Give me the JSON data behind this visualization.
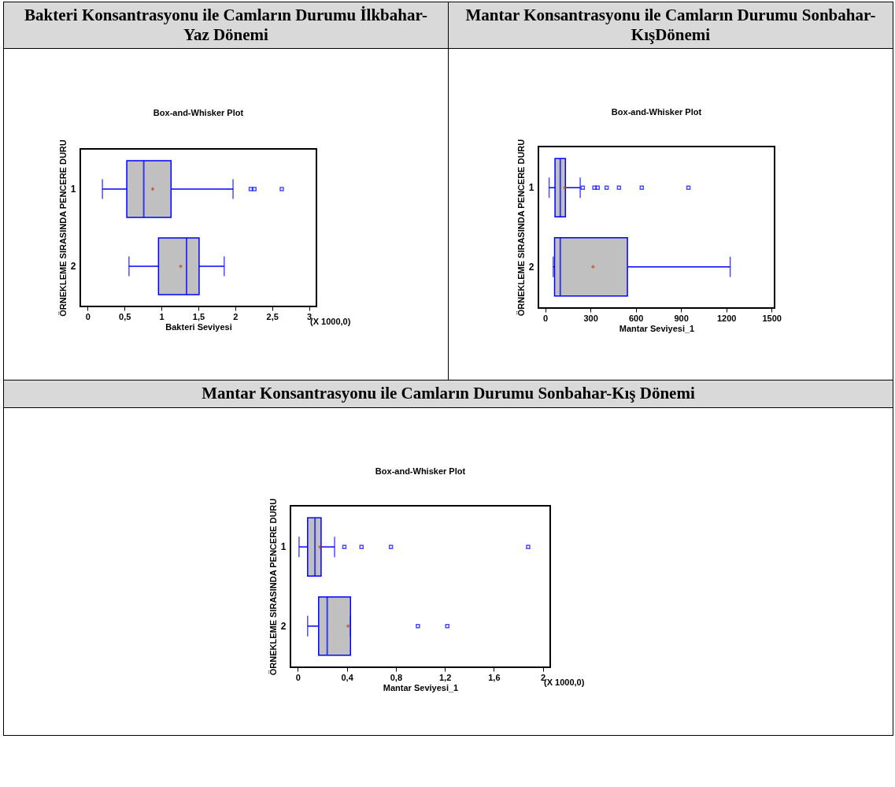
{
  "chart_data": [
    {
      "type": "box",
      "title": "Bakteri Konsantrasyonu ile Camların Durumu İlkbahar-Yaz Dönemi",
      "subtitle": "Box-and-Whisker Plot",
      "xlabel": "Bakteri Seviyesi",
      "ylabel": "ÖRNEKLEME SIRASINDA PENCERE DURU",
      "orientation": "horizontal",
      "categories": [
        "1",
        "2"
      ],
      "boxes": [
        {
          "low": 0.2,
          "q1": 0.53,
          "median": 0.76,
          "q3": 1.13,
          "high": 1.97,
          "mean": 0.88,
          "outliers": [
            2.21,
            2.26,
            2.63
          ]
        },
        {
          "low": 0.56,
          "q1": 0.96,
          "median": 1.34,
          "q3": 1.51,
          "high": 1.85,
          "mean": 1.26
        }
      ],
      "xlim": [
        -0.1,
        3.1
      ],
      "xticks": [
        0,
        {
          "value": 0.5,
          "label": "0,5"
        },
        1,
        {
          "value": 1.5,
          "label": "1,5"
        },
        2,
        {
          "value": 2.5,
          "label": "2,5"
        },
        3
      ],
      "annotations": [
        "(X 1000,0)"
      ]
    },
    {
      "type": "box",
      "title": "Mantar Konsantrasyonu ile Camların Durumu Sonbahar-KışDönemi",
      "subtitle": "Box-and-Whisker Plot",
      "xlabel": "Mantar Seviyesi_1",
      "ylabel": "ÖRNEKLEME SIRASINDA PENCERE DURU",
      "orientation": "horizontal",
      "categories": [
        "1",
        "2"
      ],
      "boxes": [
        {
          "low": 26,
          "q1": 65,
          "median": 100,
          "q3": 134,
          "high": 232,
          "mean": 130,
          "outliers": [
            249,
            326,
            348,
            407,
            489,
            640,
            949
          ]
        },
        {
          "low": 53,
          "q1": 62,
          "median": 100,
          "q3": 545,
          "high": 1226,
          "mean": 317
        }
      ],
      "xlim": [
        -45,
        1520
      ],
      "xticks": [
        0,
        300,
        600,
        900,
        1200,
        1500
      ]
    },
    {
      "type": "box",
      "title": "Mantar Konsantrasyonu ile Camların Durumu Sonbahar-Kış Dönemi",
      "subtitle": "Box-and-Whisker Plot",
      "xlabel": "Mantar Seviyesi_1",
      "ylabel": "ÖRNEKLEME SIRASINDA PENCERE DURU",
      "orientation": "horizontal",
      "categories": [
        "1",
        "2"
      ],
      "boxes": [
        {
          "low": 0.01,
          "q1": 0.08,
          "median": 0.14,
          "q3": 0.19,
          "high": 0.3,
          "mean": 0.18,
          "outliers": [
            0.38,
            0.52,
            0.76,
            1.88
          ]
        },
        {
          "low": 0.08,
          "q1": 0.17,
          "median": 0.24,
          "q3": 0.43,
          "high": 0.43,
          "mean": 0.41,
          "outliers": [
            0.98,
            1.22
          ]
        }
      ],
      "xlim": [
        -0.06,
        2.06
      ],
      "xticks": [
        0,
        {
          "value": 0.4,
          "label": "0,4"
        },
        {
          "value": 0.8,
          "label": "0,8"
        },
        {
          "value": 1.2,
          "label": "1,2"
        },
        {
          "value": 1.6,
          "label": "1,6"
        },
        2
      ],
      "annotations": [
        "(X 1000,0)"
      ]
    }
  ]
}
